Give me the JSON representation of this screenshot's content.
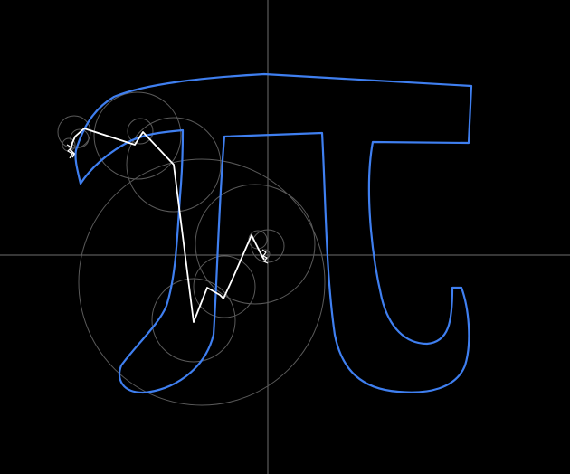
{
  "scene": {
    "description_visible_text": "",
    "colors": {
      "background": "#000000",
      "axes": "#6e6e6e",
      "path": "#3f7ff0",
      "epicycle_arms": "#ffffff",
      "epicycle_circles": "#5a5a5a"
    }
  }
}
